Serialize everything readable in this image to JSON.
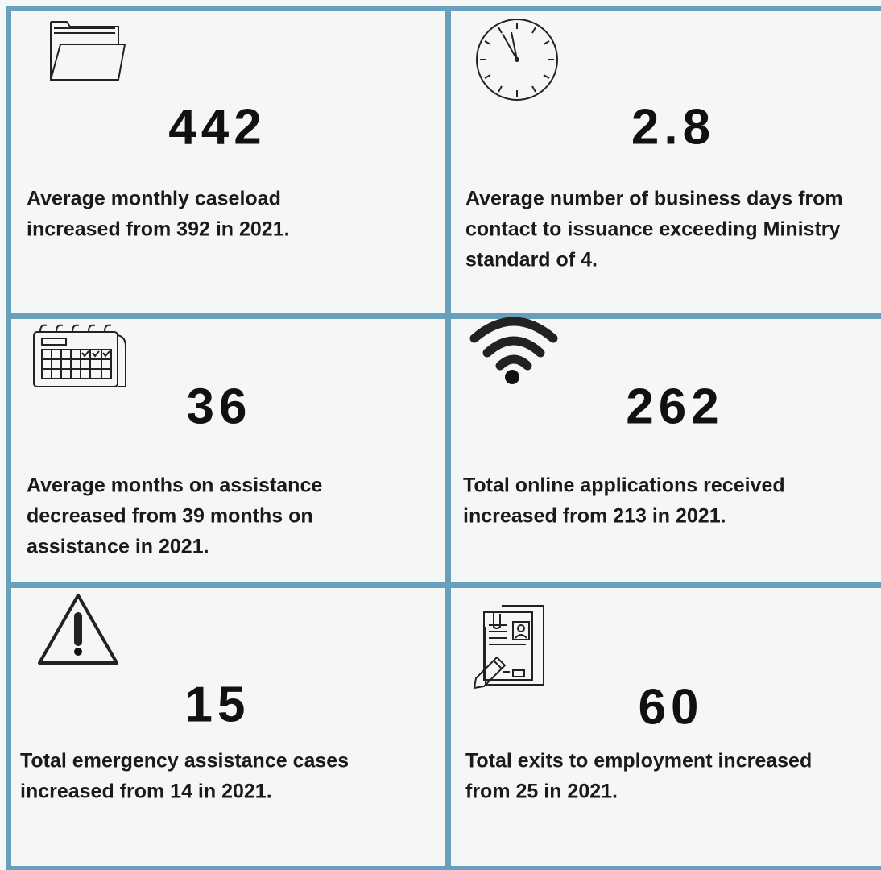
{
  "cells": [
    {
      "value": "442",
      "lines": [
        "Average monthly caseload",
        "increased from 392 in 2021."
      ]
    },
    {
      "value": "2.8",
      "lines": [
        "Average number of business days from",
        "contact to issuance exceeding Ministry",
        "standard of 4."
      ]
    },
    {
      "value": "36",
      "lines": [
        "Average months on assistance",
        "decreased from 39 months on",
        "assistance in 2021."
      ]
    },
    {
      "value": "262",
      "lines": [
        "Total online applications received",
        "increased from 213 in 2021."
      ]
    },
    {
      "value": "15",
      "lines": [
        "Total emergency assistance cases",
        "increased from 14 in 2021."
      ]
    },
    {
      "value": "60",
      "lines": [
        "Total exits to employment increased",
        "from 25 in 2021."
      ]
    }
  ]
}
